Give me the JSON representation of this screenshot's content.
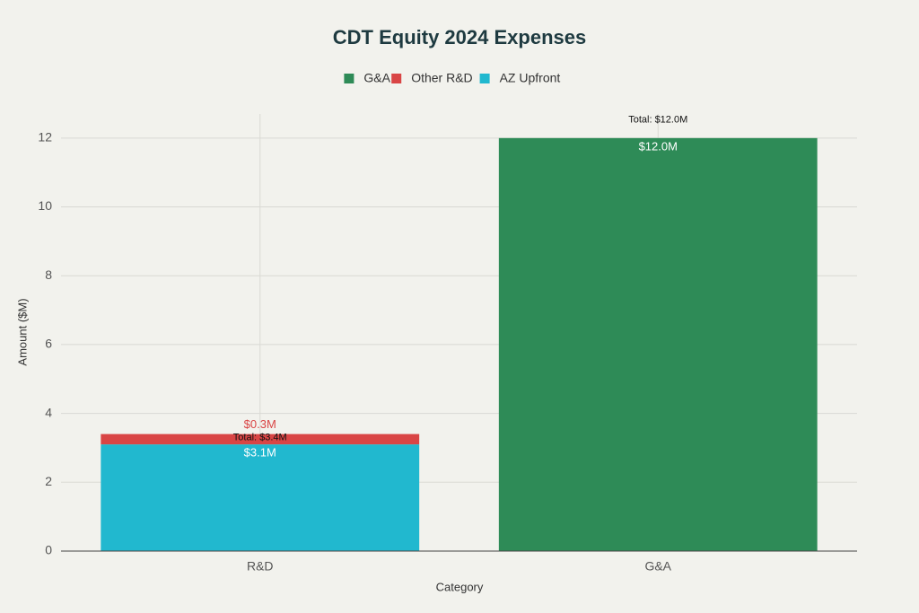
{
  "chart_data": {
    "type": "stacked-bar",
    "title": "CDT Equity 2024 Expenses",
    "x_label": "Category",
    "y_label": "Amount ($M)",
    "categories": [
      "R&D",
      "G&A"
    ],
    "series": [
      {
        "name": "G&A",
        "color": "#2e8b57",
        "values": [
          null,
          12.0
        ],
        "value_labels": [
          null,
          "$12.0M"
        ]
      },
      {
        "name": "Other R&D",
        "color": "#d94545",
        "values": [
          0.3,
          null
        ],
        "value_labels": [
          "$0.3M",
          null
        ]
      },
      {
        "name": "AZ Upfront",
        "color": "#21b8cf",
        "values": [
          3.1,
          null
        ],
        "value_labels": [
          "$3.1M",
          null
        ]
      }
    ],
    "annotations": [
      "Total: $3.4M",
      "Total: $12.0M"
    ],
    "ylim": [
      0,
      12.7
    ],
    "yticks": [
      0,
      2,
      4,
      6,
      8,
      10,
      12
    ],
    "grid": true
  }
}
